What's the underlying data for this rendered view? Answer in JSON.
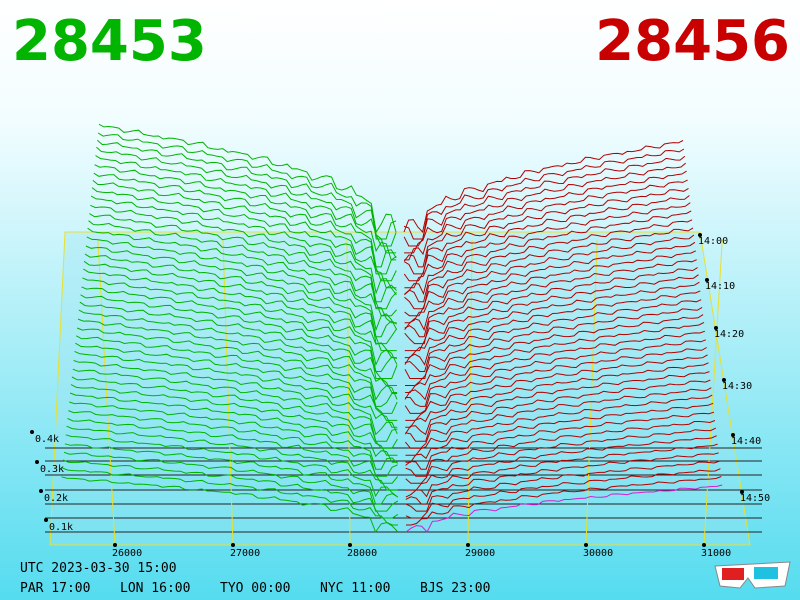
{
  "header": {
    "bid": "28453",
    "ask": "28456"
  },
  "price_axis": [
    "26000",
    "27000",
    "28000",
    "29000",
    "30000",
    "31000"
  ],
  "depth_axis": [
    "0.4k",
    "0.3k",
    "0.2k",
    "0.1k"
  ],
  "time_axis": [
    "14:00",
    "14:10",
    "14:20",
    "14:30",
    "14:40",
    "14:50"
  ],
  "footer": {
    "utc": "UTC 2023-03-30 15:00",
    "zones": [
      "PAR 17:00",
      "LON 16:00",
      "TYO 00:00",
      "NYC 11:00",
      "BJS 23:00"
    ]
  }
}
